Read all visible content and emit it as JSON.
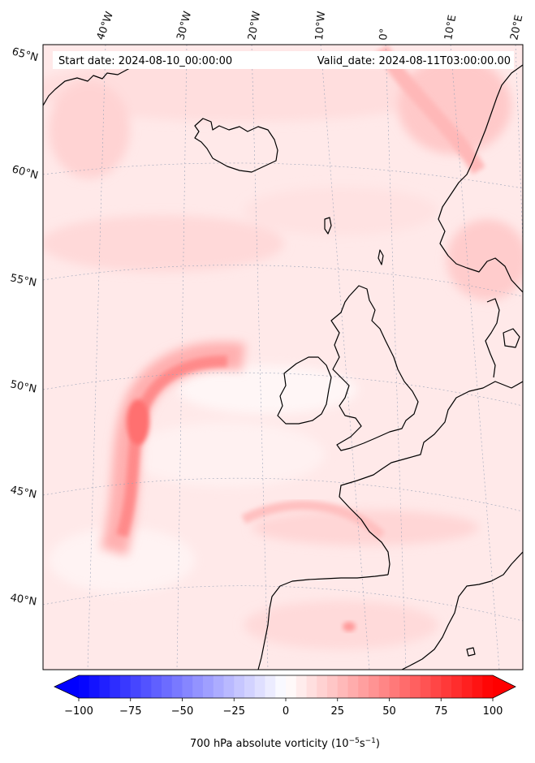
{
  "map": {
    "start_date": "Start date: 2024-08-10_00:00:00",
    "valid_date": "Valid_date: 2024-08-11T03:00:00.00",
    "lon_labels": [
      "40°W",
      "30°W",
      "20°W",
      "10°W",
      "0°",
      "10°E",
      "20°E"
    ],
    "lat_labels": [
      "65°N",
      "60°N",
      "55°N",
      "50°N",
      "45°N",
      "40°N"
    ],
    "field_colors": {
      "low": "#0000ff",
      "zero": "#ffffff",
      "high": "#ff0000"
    }
  },
  "colorbar": {
    "label_prefix": "700 hPa absolute vorticity (10",
    "label_exp1": "−5",
    "label_mid": "s",
    "label_exp2": "−1",
    "label_suffix": ")",
    "min": -100,
    "max": 100,
    "step": 5,
    "ticks": [
      "−100",
      "−75",
      "−50",
      "−25",
      "0",
      "25",
      "50",
      "75",
      "100"
    ]
  }
}
